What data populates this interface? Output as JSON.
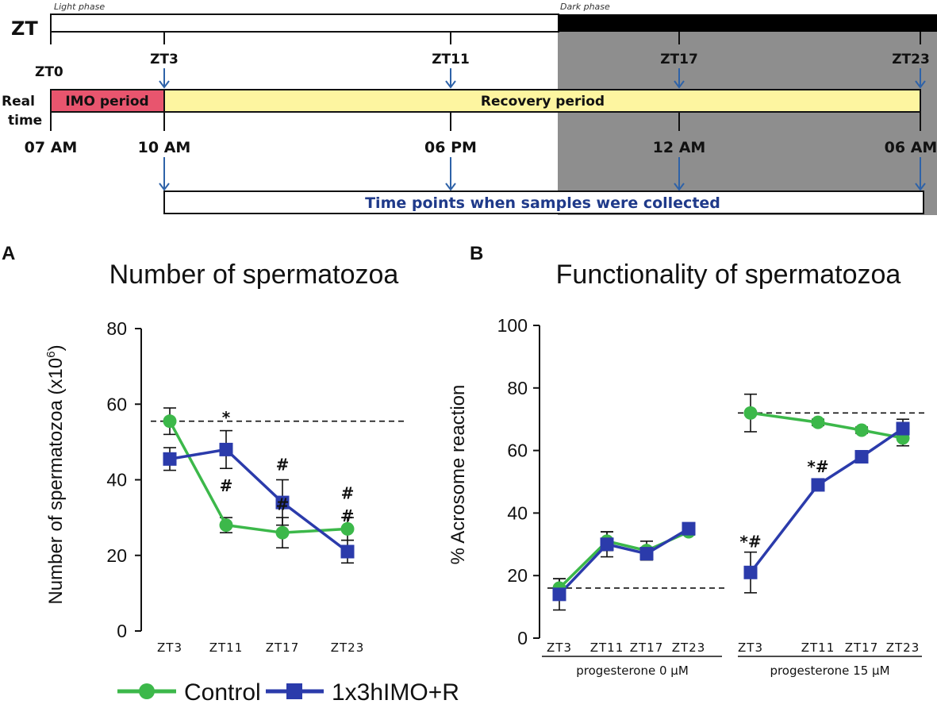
{
  "timeline": {
    "zt_label": "ZT",
    "light_phase": "Light phase",
    "dark_phase": "Dark phase",
    "zt0": "ZT0",
    "zt_points": [
      "ZT3",
      "ZT11",
      "ZT17",
      "ZT23"
    ],
    "real_time_label_1": "Real",
    "real_time_label_2": "time",
    "imo_period": "IMO period",
    "recovery_period": "Recovery period",
    "times": [
      "07 AM",
      "10 AM",
      "06 PM",
      "12 AM",
      "06 AM"
    ],
    "samples_box": "Time points when samples were collected",
    "colors": {
      "imo": "#e8556e",
      "recovery": "#fdf5a0",
      "dark": "#8e8e8e",
      "arrow": "#2e62a8"
    }
  },
  "legend": {
    "control": "Control",
    "imo": "1x3hIMO+R",
    "colors": {
      "control": "#3cb84a",
      "imo": "#2b3bab"
    }
  },
  "chart_data": [
    {
      "panel": "A",
      "type": "line",
      "title": "Number of spermatozoa",
      "ylabel": "Number of spermatozoa (x10",
      "ylabel_sup": "6",
      "ylabel_close": ")",
      "ylim": [
        0,
        80
      ],
      "yticks": [
        "0",
        "20",
        "40",
        "60",
        "80"
      ],
      "categories": [
        "ZT3",
        "ZT11",
        "ZT17",
        "ZT23"
      ],
      "reference_line": 55.5,
      "series": [
        {
          "name": "Control",
          "values": [
            55.5,
            28,
            26,
            27
          ],
          "errors": [
            3.5,
            2,
            4,
            3
          ]
        },
        {
          "name": "1x3hIMO+R",
          "values": [
            45.5,
            48,
            34,
            21
          ],
          "errors": [
            3,
            5,
            6,
            3
          ]
        }
      ],
      "annotations": [
        {
          "text": "*",
          "category": 1,
          "y": 55
        },
        {
          "text": "#",
          "category": 1,
          "y": 37
        },
        {
          "text": "#",
          "category": 2,
          "y": 42.5
        },
        {
          "text": "#",
          "category": 2,
          "y": 32
        },
        {
          "text": "#",
          "category": 3,
          "y": 35
        },
        {
          "text": "#",
          "category": 3,
          "y": 29
        }
      ]
    },
    {
      "panel": "B",
      "type": "line",
      "title": "Functionality of spermatozoa",
      "ylabel": "% Acrosome reaction",
      "ylim": [
        0,
        100
      ],
      "yticks": [
        "0",
        "20",
        "40",
        "60",
        "80",
        "100"
      ],
      "groups": [
        {
          "label": "progesterone 0 μM",
          "categories": [
            "ZT3",
            "ZT11",
            "ZT17",
            "ZT23"
          ],
          "reference_line": 16,
          "series": [
            {
              "name": "Control",
              "values": [
                16,
                31,
                28,
                34
              ],
              "errors": [
                3,
                3,
                3,
                1
              ]
            },
            {
              "name": "1x3hIMO+R",
              "values": [
                14,
                30,
                27,
                35
              ],
              "errors": [
                5,
                4,
                2,
                1
              ]
            }
          ],
          "annotations": []
        },
        {
          "label": "progesterone 15 μM",
          "categories": [
            "ZT3",
            "ZT11",
            "ZT17",
            "ZT23"
          ],
          "reference_line": 72,
          "series": [
            {
              "name": "Control",
              "values": [
                72,
                69,
                66.5,
                64
              ],
              "errors": [
                6,
                1,
                1,
                2.5
              ]
            },
            {
              "name": "1x3hIMO+R",
              "values": [
                21,
                49,
                58,
                67
              ],
              "errors": [
                6.5,
                1,
                1,
                3
              ]
            }
          ],
          "annotations": [
            {
              "text": "*#",
              "category": 0,
              "y": 29
            },
            {
              "text": "*#",
              "category": 1,
              "y": 53
            }
          ]
        }
      ]
    }
  ],
  "panel_labels": [
    "A",
    "B"
  ]
}
